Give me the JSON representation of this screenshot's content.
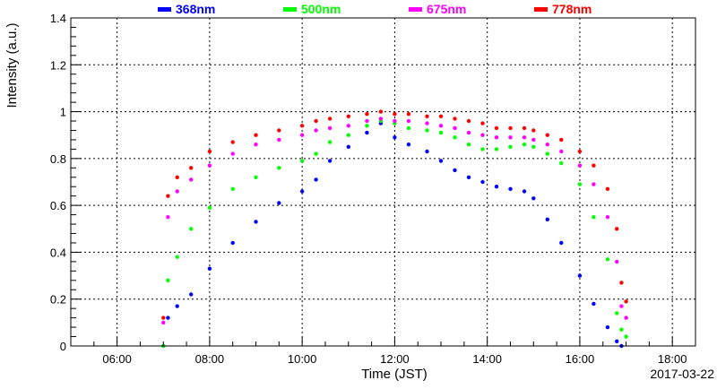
{
  "chart_data": {
    "type": "scatter",
    "xlabel": "Time (JST)",
    "ylabel": "Intensity (a.u.)",
    "date": "2017-03-22",
    "xlim": [
      5.0,
      18.5
    ],
    "ylim": [
      0,
      1.4
    ],
    "x_unit": "hours (JST)",
    "x_ticks": [
      {
        "value": 6,
        "label": "06:00"
      },
      {
        "value": 8,
        "label": "08:00"
      },
      {
        "value": 10,
        "label": "10:00"
      },
      {
        "value": 12,
        "label": "12:00"
      },
      {
        "value": 14,
        "label": "14:00"
      },
      {
        "value": 16,
        "label": "16:00"
      },
      {
        "value": 18,
        "label": "18:00"
      }
    ],
    "y_ticks": [
      {
        "value": 0,
        "label": "0"
      },
      {
        "value": 0.2,
        "label": "0.2"
      },
      {
        "value": 0.4,
        "label": "0.4"
      },
      {
        "value": 0.6,
        "label": "0.6"
      },
      {
        "value": 0.8,
        "label": "0.8"
      },
      {
        "value": 1.0,
        "label": "1"
      },
      {
        "value": 1.2,
        "label": "1.2"
      },
      {
        "value": 1.4,
        "label": "1.4"
      }
    ],
    "grid": true,
    "legend_position": "top",
    "series": [
      {
        "name": "368nm",
        "color": "#0000ff",
        "x": [
          7.0,
          7.1,
          7.3,
          7.6,
          8.0,
          8.5,
          9.0,
          9.5,
          10.0,
          10.3,
          10.6,
          11.0,
          11.4,
          11.7,
          12.0,
          12.3,
          12.7,
          13.0,
          13.3,
          13.6,
          13.9,
          14.2,
          14.5,
          14.8,
          15.0,
          15.3,
          15.6,
          16.0,
          16.3,
          16.6,
          16.8,
          16.9
        ],
        "y": [
          0.0,
          0.12,
          0.17,
          0.22,
          0.33,
          0.44,
          0.53,
          0.61,
          0.66,
          0.71,
          0.79,
          0.85,
          0.91,
          0.95,
          0.89,
          0.86,
          0.83,
          0.79,
          0.75,
          0.72,
          0.7,
          0.68,
          0.67,
          0.66,
          0.63,
          0.54,
          0.44,
          0.3,
          0.18,
          0.08,
          0.02,
          0.0
        ]
      },
      {
        "name": "500nm",
        "color": "#00ff00",
        "x": [
          7.0,
          7.1,
          7.3,
          7.6,
          8.0,
          8.5,
          9.0,
          9.5,
          10.0,
          10.3,
          10.6,
          11.0,
          11.4,
          11.7,
          12.0,
          12.3,
          12.7,
          13.0,
          13.3,
          13.6,
          13.9,
          14.2,
          14.5,
          14.8,
          15.0,
          15.3,
          15.6,
          16.0,
          16.3,
          16.6,
          16.8,
          16.9,
          17.0
        ],
        "y": [
          0.0,
          0.28,
          0.38,
          0.5,
          0.59,
          0.67,
          0.72,
          0.76,
          0.79,
          0.82,
          0.87,
          0.9,
          0.94,
          0.96,
          0.95,
          0.93,
          0.92,
          0.91,
          0.89,
          0.86,
          0.84,
          0.84,
          0.85,
          0.86,
          0.85,
          0.82,
          0.78,
          0.69,
          0.55,
          0.37,
          0.14,
          0.07,
          0.04
        ]
      },
      {
        "name": "675nm",
        "color": "#ff00ff",
        "x": [
          7.0,
          7.1,
          7.3,
          7.6,
          8.0,
          8.5,
          9.0,
          9.5,
          10.0,
          10.3,
          10.6,
          11.0,
          11.4,
          11.7,
          12.0,
          12.3,
          12.7,
          13.0,
          13.3,
          13.6,
          13.9,
          14.2,
          14.5,
          14.8,
          15.0,
          15.3,
          15.6,
          16.0,
          16.3,
          16.6,
          16.8,
          16.9,
          17.0
        ],
        "y": [
          0.1,
          0.55,
          0.66,
          0.71,
          0.77,
          0.82,
          0.86,
          0.88,
          0.9,
          0.92,
          0.93,
          0.94,
          0.96,
          0.97,
          0.96,
          0.96,
          0.95,
          0.94,
          0.93,
          0.91,
          0.9,
          0.89,
          0.89,
          0.89,
          0.88,
          0.86,
          0.83,
          0.77,
          0.69,
          0.55,
          0.36,
          0.17,
          0.12
        ]
      },
      {
        "name": "778nm",
        "color": "#ff0000",
        "x": [
          7.0,
          7.1,
          7.3,
          7.6,
          8.0,
          8.5,
          9.0,
          9.5,
          10.0,
          10.3,
          10.6,
          11.0,
          11.4,
          11.7,
          12.0,
          12.3,
          12.7,
          13.0,
          13.3,
          13.6,
          13.9,
          14.2,
          14.5,
          14.8,
          15.0,
          15.3,
          15.6,
          16.0,
          16.3,
          16.6,
          16.8,
          16.9,
          17.0
        ],
        "y": [
          0.12,
          0.64,
          0.72,
          0.76,
          0.83,
          0.87,
          0.9,
          0.92,
          0.94,
          0.96,
          0.97,
          0.98,
          0.99,
          1.0,
          0.99,
          0.99,
          0.98,
          0.98,
          0.97,
          0.96,
          0.95,
          0.93,
          0.93,
          0.93,
          0.92,
          0.9,
          0.88,
          0.83,
          0.77,
          0.67,
          0.5,
          0.27,
          0.19
        ]
      }
    ]
  }
}
